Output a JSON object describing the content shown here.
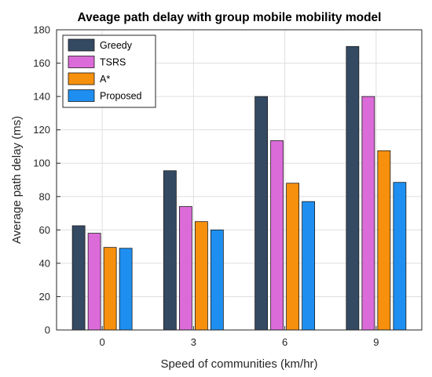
{
  "chart_data": {
    "type": "bar",
    "title": "Aveage path delay with group mobile mobility model",
    "xlabel": "Speed of communities (km/hr)",
    "ylabel": "Average path delay (ms)",
    "categories": [
      "0",
      "3",
      "6",
      "9"
    ],
    "ylim": [
      0,
      180
    ],
    "yticks": [
      0,
      20,
      40,
      60,
      80,
      100,
      120,
      140,
      160,
      180
    ],
    "grid": true,
    "legend_position": "top-left",
    "series": [
      {
        "name": "Greedy",
        "color": "#344a63",
        "values": [
          62.5,
          95.5,
          140,
          170
        ]
      },
      {
        "name": "TSRS",
        "color": "#db6bd8",
        "values": [
          58,
          74,
          113.5,
          140
        ]
      },
      {
        "name": "A*",
        "color": "#f7900d",
        "values": [
          49.5,
          65,
          88,
          107.5
        ]
      },
      {
        "name": "Proposed",
        "color": "#1e8ff0",
        "values": [
          49,
          60,
          77,
          88.5
        ]
      }
    ]
  }
}
